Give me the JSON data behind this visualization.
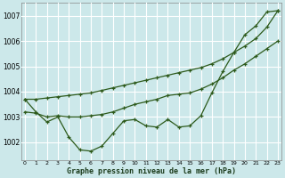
{
  "xlabel": "Graphe pression niveau de la mer (hPa)",
  "bg_color": "#cce8ea",
  "grid_color": "#ffffff",
  "line_color": "#2d5a1b",
  "hours": [
    0,
    1,
    2,
    3,
    4,
    5,
    6,
    7,
    8,
    9,
    10,
    11,
    12,
    13,
    14,
    15,
    16,
    17,
    18,
    19,
    20,
    21,
    22,
    23
  ],
  "line1": [
    1003.7,
    1003.2,
    1002.8,
    1003.0,
    1002.2,
    1001.7,
    1001.65,
    1001.85,
    1002.35,
    1002.85,
    1002.9,
    1002.65,
    1002.6,
    1002.9,
    1002.6,
    1002.65,
    1003.05,
    1003.95,
    1004.8,
    1005.55,
    1006.25,
    1006.6,
    1007.15,
    1007.2
  ],
  "line2": [
    1003.2,
    1003.15,
    1003.0,
    1003.05,
    1003.0,
    1003.0,
    1003.05,
    1003.1,
    1003.2,
    1003.35,
    1003.5,
    1003.6,
    1003.7,
    1003.85,
    1003.9,
    1003.95,
    1004.1,
    1004.3,
    1004.55,
    1004.85,
    1005.1,
    1005.4,
    1005.7,
    1006.0
  ],
  "line3": [
    1003.7,
    1003.7,
    1003.75,
    1003.8,
    1003.85,
    1003.9,
    1003.95,
    1004.05,
    1004.15,
    1004.25,
    1004.35,
    1004.45,
    1004.55,
    1004.65,
    1004.75,
    1004.85,
    1004.95,
    1005.1,
    1005.3,
    1005.55,
    1005.8,
    1006.1,
    1006.55,
    1007.2
  ],
  "ylim": [
    1001.3,
    1007.5
  ],
  "yticks": [
    1002,
    1003,
    1004,
    1005,
    1006,
    1007
  ],
  "xlim": [
    -0.3,
    23.3
  ]
}
